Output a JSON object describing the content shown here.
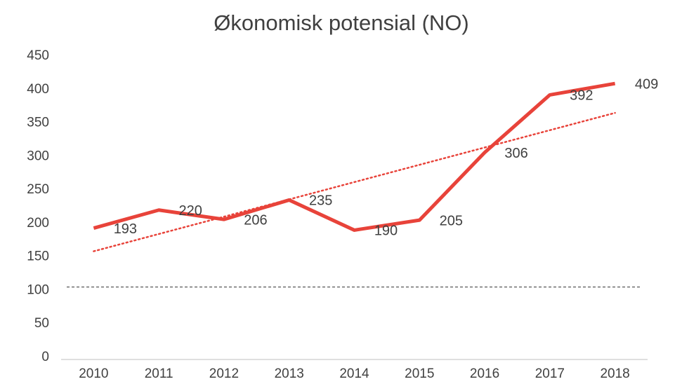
{
  "chart_data": {
    "type": "line",
    "title": "Økonomisk potensial (NO)",
    "categories": [
      "2010",
      "2011",
      "2012",
      "2013",
      "2014",
      "2015",
      "2016",
      "2017",
      "2018"
    ],
    "series": [
      {
        "name": "Økonomisk potensial",
        "color": "#e8433a",
        "values": [
          193,
          220,
          206,
          235,
          190,
          205,
          306,
          392,
          409
        ]
      }
    ],
    "trendline": "linear",
    "reference_line": 105,
    "ylim": [
      0,
      450
    ],
    "yticks": [
      0,
      50,
      100,
      150,
      200,
      250,
      300,
      350,
      400,
      450
    ],
    "grid": false
  }
}
